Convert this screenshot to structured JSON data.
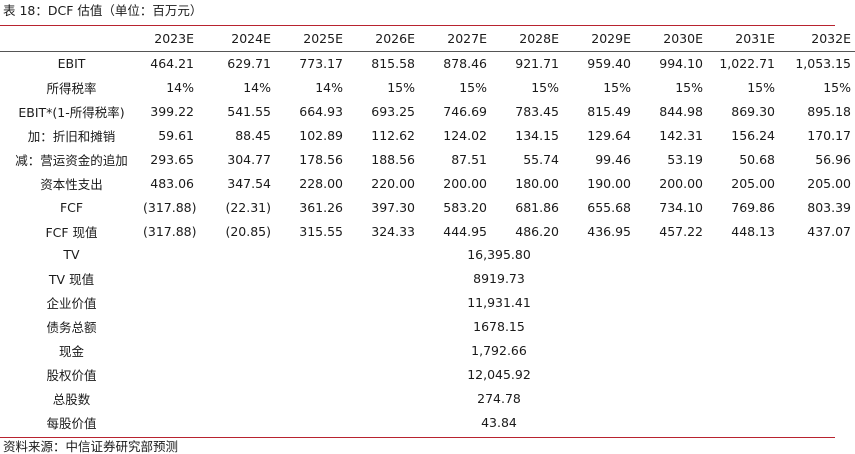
{
  "title": "表 18：DCF 估值（单位：百万元）",
  "source": "资料来源：中信证券研究部预测",
  "columns": [
    "2023E",
    "2024E",
    "2025E",
    "2026E",
    "2027E",
    "2028E",
    "2029E",
    "2030E",
    "2031E",
    "2032E"
  ],
  "rows": [
    {
      "label": "EBIT",
      "values": [
        "464.21",
        "629.71",
        "773.17",
        "815.58",
        "878.46",
        "921.71",
        "959.40",
        "994.10",
        "1,022.71",
        "1,053.15"
      ]
    },
    {
      "label": "所得税率",
      "values": [
        "14%",
        "14%",
        "14%",
        "15%",
        "15%",
        "15%",
        "15%",
        "15%",
        "15%",
        "15%"
      ]
    },
    {
      "label": "EBIT*(1-所得税率)",
      "values": [
        "399.22",
        "541.55",
        "664.93",
        "693.25",
        "746.69",
        "783.45",
        "815.49",
        "844.98",
        "869.30",
        "895.18"
      ]
    },
    {
      "label": "加：折旧和摊销",
      "values": [
        "59.61",
        "88.45",
        "102.89",
        "112.62",
        "124.02",
        "134.15",
        "129.64",
        "142.31",
        "156.24",
        "170.17"
      ]
    },
    {
      "label": "减：营运资金的追加",
      "values": [
        "293.65",
        "304.77",
        "178.56",
        "188.56",
        "87.51",
        "55.74",
        "99.46",
        "53.19",
        "50.68",
        "56.96"
      ]
    },
    {
      "label": "资本性支出",
      "values": [
        "483.06",
        "347.54",
        "228.00",
        "220.00",
        "200.00",
        "180.00",
        "190.00",
        "200.00",
        "205.00",
        "205.00"
      ]
    },
    {
      "label": "FCF",
      "values": [
        "(317.88)",
        "(22.31)",
        "361.26",
        "397.30",
        "583.20",
        "681.86",
        "655.68",
        "734.10",
        "769.86",
        "803.39"
      ]
    },
    {
      "label": "FCF 现值",
      "values": [
        "(317.88)",
        "(20.85)",
        "315.55",
        "324.33",
        "444.95",
        "486.20",
        "436.95",
        "457.22",
        "448.13",
        "437.07"
      ]
    }
  ],
  "summary": [
    {
      "label": "TV",
      "value": "16,395.80"
    },
    {
      "label": "TV 现值",
      "value": "8919.73"
    },
    {
      "label": "企业价值",
      "value": "11,931.41"
    },
    {
      "label": "债务总额",
      "value": "1678.15"
    },
    {
      "label": "现金",
      "value": "1,792.66"
    },
    {
      "label": "股权价值",
      "value": "12,045.92"
    },
    {
      "label": "总股数",
      "value": "274.78"
    },
    {
      "label": "每股价值",
      "value": "43.84"
    }
  ]
}
